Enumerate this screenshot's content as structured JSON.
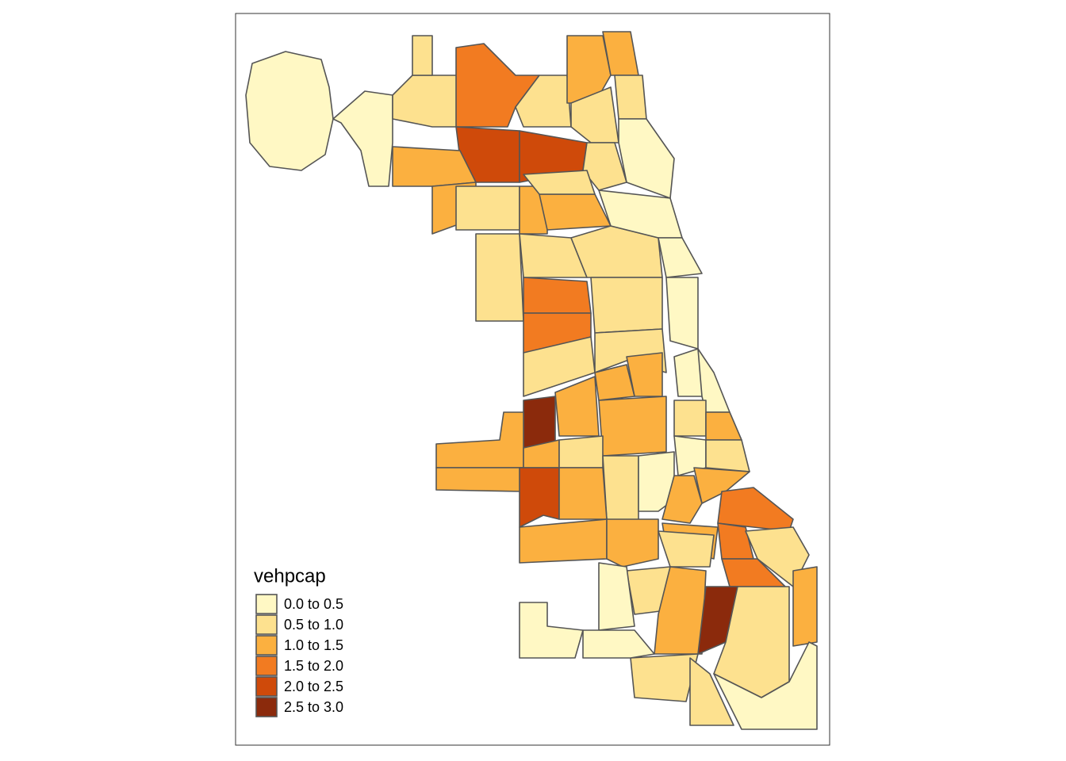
{
  "chart_data": {
    "type": "choropleth",
    "legend": {
      "title": "vehpcap",
      "items": [
        {
          "label": "0.0 to 0.5",
          "min": 0,
          "max": 0.5,
          "color": "#fff8c4"
        },
        {
          "label": "0.5 to 1.0",
          "min": 0.5,
          "max": 1,
          "color": "#fde18f"
        },
        {
          "label": "1.0 to 1.5",
          "min": 1,
          "max": 1.5,
          "color": "#fbb040"
        },
        {
          "label": "1.5 to 2.0",
          "min": 1.5,
          "max": 2,
          "color": "#f27b21"
        },
        {
          "label": "2.0 to 2.5",
          "min": 2,
          "max": 2.5,
          "color": "#cf4a0a"
        },
        {
          "label": "2.5 to 3.0",
          "min": 2.5,
          "max": 3,
          "color": "#8b2a0c"
        }
      ]
    },
    "regions": [
      0.3,
      0.4,
      0.8,
      0.8,
      1.8,
      2.3,
      2.3,
      1.2,
      0.8,
      1.3,
      1.2,
      0.7,
      0.7,
      0.3,
      0.8,
      1.2,
      0.8,
      1.2,
      1.2,
      0.8,
      0.8,
      0.8,
      0.8,
      0.3,
      0.3,
      1.8,
      1.8,
      0.8,
      0.3,
      0.8,
      0.8,
      1.2,
      1.2,
      0.3,
      0.3,
      2.8,
      1.2,
      1.2,
      0.7,
      1.3,
      1.2,
      1.2,
      1.2,
      0.8,
      0.8,
      0.3,
      0.3,
      0.8,
      2.2,
      1.2,
      1.2,
      1.2,
      1.8,
      1.2,
      1.2,
      1.2,
      0.7,
      1.8,
      0.7,
      1.8,
      0.8,
      1.2,
      2.8,
      0.8,
      1.3,
      0.3,
      0.8,
      0.8,
      0.3,
      0.4,
      0.3
    ]
  }
}
